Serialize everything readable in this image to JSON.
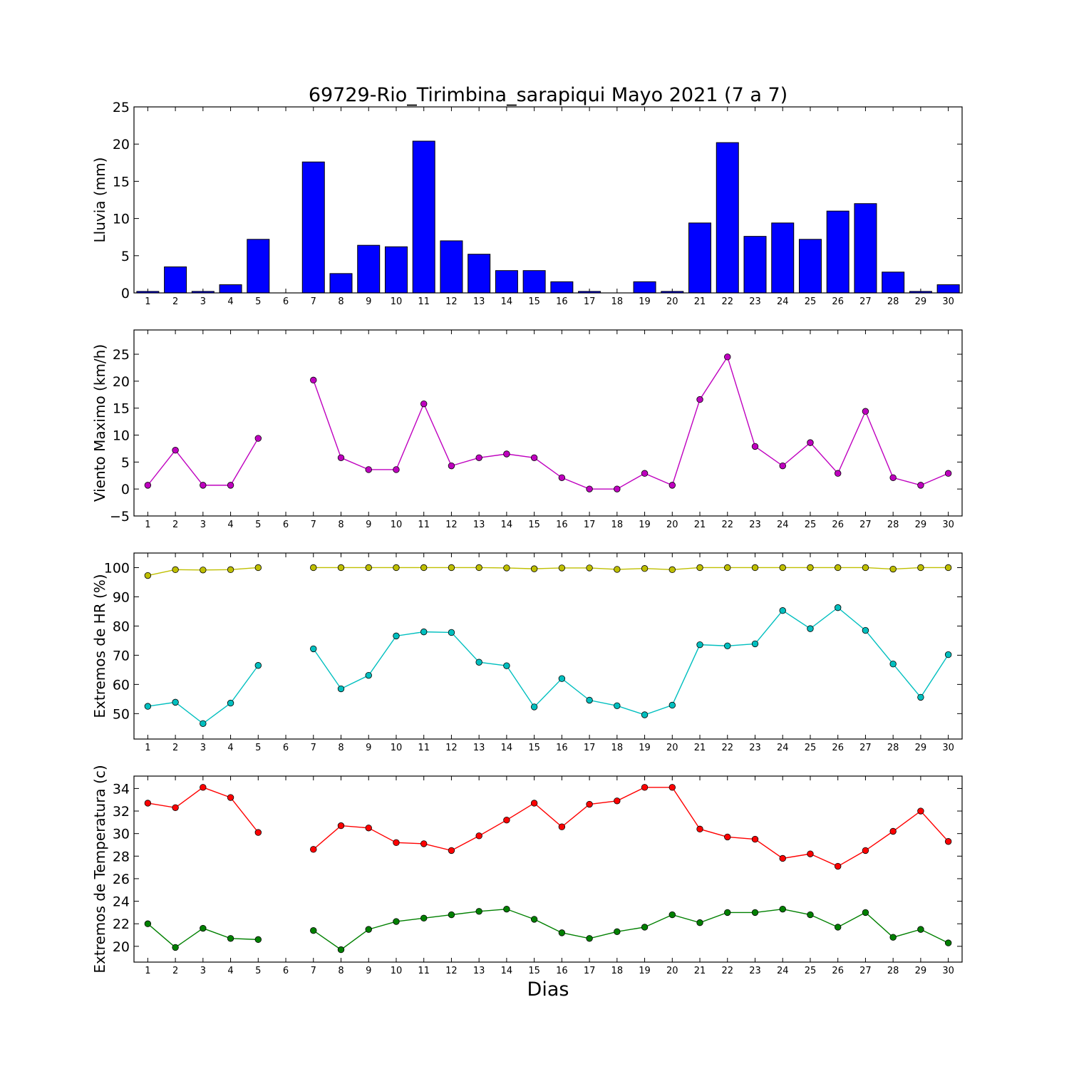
{
  "chart_data": {
    "title": "69729-Rio_Tirimbina_sarapiqui Mayo 2021  (7 a 7)",
    "xlabel": "Dias",
    "days": [
      1,
      2,
      3,
      4,
      5,
      6,
      7,
      8,
      9,
      10,
      11,
      12,
      13,
      14,
      15,
      16,
      17,
      18,
      19,
      20,
      21,
      22,
      23,
      24,
      25,
      26,
      27,
      28,
      29,
      30
    ],
    "panels": [
      {
        "type": "bar",
        "ylabel": "Lluvia (mm)",
        "ylim": [
          0,
          25
        ],
        "yticks": [
          0,
          5,
          10,
          15,
          20,
          25
        ],
        "series": [
          {
            "values": [
              0.2,
              3.5,
              0.2,
              1.1,
              7.2,
              null,
              17.6,
              2.6,
              6.4,
              6.2,
              20.4,
              7.0,
              5.2,
              3.0,
              3.0,
              1.5,
              0.2,
              null,
              1.5,
              0.2,
              9.4,
              20.2,
              7.6,
              9.4,
              7.2,
              11.0,
              12.0,
              2.8,
              0.2,
              1.1
            ],
            "color": "#0000ff"
          }
        ]
      },
      {
        "type": "line",
        "ylabel": "Viento Maximo (km/h)",
        "ylim": [
          -5,
          29.5
        ],
        "yticks": [
          -5,
          0,
          5,
          10,
          15,
          20,
          25
        ],
        "series": [
          {
            "values": [
              0.7,
              7.2,
              0.7,
              0.7,
              9.4,
              null,
              20.2,
              5.8,
              3.6,
              3.6,
              15.8,
              4.3,
              5.8,
              6.5,
              5.8,
              2.1,
              0.0,
              0.0,
              2.9,
              0.7,
              16.6,
              24.5,
              7.9,
              4.3,
              8.6,
              2.9,
              14.4,
              2.1,
              0.7,
              2.9
            ],
            "color": "#bf00bf"
          }
        ]
      },
      {
        "type": "line",
        "ylabel": "Extremos de HR (%)",
        "ylim": [
          41.3,
          105
        ],
        "yticks": [
          50,
          60,
          70,
          80,
          90,
          100
        ],
        "series": [
          {
            "values": [
              97.3,
              99.3,
              99.2,
              99.3,
              100.0,
              null,
              100.0,
              100.0,
              100.0,
              100.0,
              100.0,
              100.0,
              100.0,
              99.9,
              99.6,
              99.9,
              99.9,
              99.4,
              99.7,
              99.3,
              100.0,
              100.0,
              100.0,
              100.0,
              100.0,
              100.0,
              100.0,
              99.5,
              100.0,
              100.0
            ],
            "color": "#bfbf00"
          },
          {
            "values": [
              52.5,
              53.9,
              46.6,
              53.6,
              66.5,
              null,
              72.2,
              58.5,
              63.1,
              76.6,
              78.0,
              77.8,
              67.6,
              66.4,
              52.3,
              62.0,
              54.6,
              52.7,
              49.6,
              52.9,
              73.6,
              73.2,
              73.9,
              85.3,
              79.1,
              86.3,
              78.5,
              67.0,
              55.6,
              70.2
            ],
            "color": "#00bfbf"
          }
        ]
      },
      {
        "type": "line",
        "ylabel": "Extremos de Temperatura (c)",
        "ylim": [
          18.6,
          35.1
        ],
        "yticks": [
          20,
          22,
          24,
          26,
          28,
          30,
          32,
          34
        ],
        "series": [
          {
            "values": [
              32.7,
              32.3,
              34.1,
              33.2,
              30.1,
              null,
              28.6,
              30.7,
              30.5,
              29.2,
              29.1,
              28.5,
              29.8,
              31.2,
              32.7,
              30.6,
              32.6,
              32.9,
              34.1,
              34.1,
              30.4,
              29.7,
              29.5,
              27.8,
              28.2,
              27.1,
              28.5,
              30.2,
              32.0,
              29.3
            ],
            "color": "#ff0000"
          },
          {
            "values": [
              22.0,
              19.9,
              21.6,
              20.7,
              20.6,
              null,
              21.4,
              19.7,
              21.5,
              22.2,
              22.5,
              22.8,
              23.1,
              23.3,
              22.4,
              21.2,
              20.7,
              21.3,
              21.7,
              22.8,
              22.1,
              23.0,
              23.0,
              23.3,
              22.8,
              21.7,
              23.0,
              20.8,
              21.5,
              20.3
            ],
            "color": "#008000"
          }
        ]
      }
    ]
  }
}
